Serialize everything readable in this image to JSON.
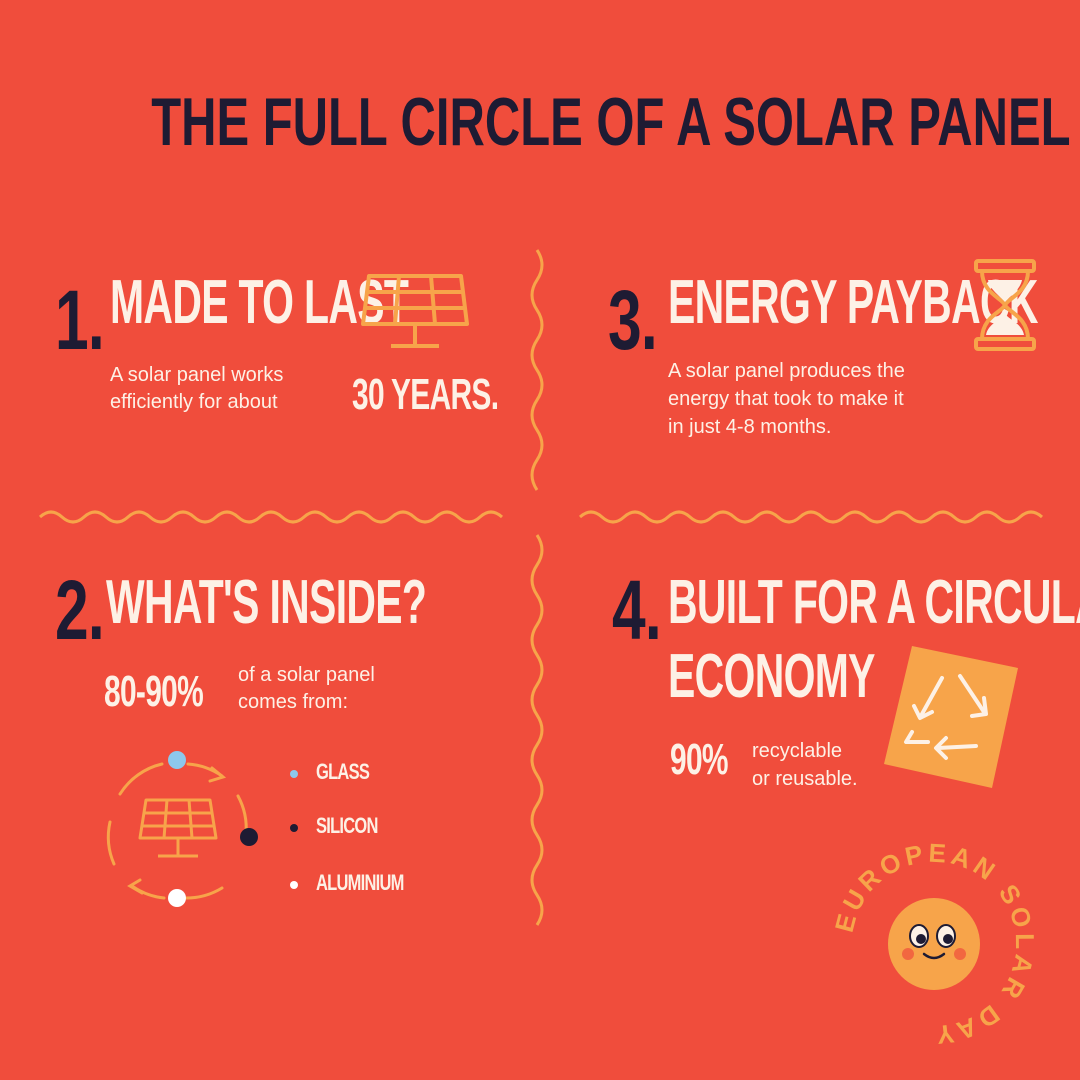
{
  "title": "THE FULL CIRCLE OF A SOLAR PANEL",
  "sections": [
    {
      "number": "1.",
      "heading": "MADE TO LAST",
      "text_line1": "A solar panel works",
      "text_line2": "efficiently for about",
      "stat": "30 YEARS.",
      "icon": "solar-panel-icon"
    },
    {
      "number": "2.",
      "heading": "WHAT'S INSIDE?",
      "stat": "80-90%",
      "text_line1": "of a solar panel",
      "text_line2": "comes from:",
      "icon": "recycle-cycle-icon",
      "materials": [
        {
          "label": "GLASS",
          "color": "#8DC8EC"
        },
        {
          "label": "SILICON",
          "color": "#1E1B33"
        },
        {
          "label": "ALUMINIUM",
          "color": "#FFFFFF"
        }
      ]
    },
    {
      "number": "3.",
      "heading": "ENERGY PAYBACK",
      "text_line1": "A solar panel produces the",
      "text_line2": "energy that took to make it",
      "text_line3": "in just 4-8 months.",
      "icon": "hourglass-icon"
    },
    {
      "number": "4.",
      "heading_line1": "BUILT FOR A CIRCULAR",
      "heading_line2": "ECONOMY",
      "stat": "90%",
      "text_line1": "recyclable",
      "text_line2": "or reusable.",
      "icon": "recycle-icon"
    }
  ],
  "logo": {
    "text": "EUROPEAN SOLAR DAY",
    "icon": "smiling-sun-icon"
  },
  "colors": {
    "background": "#F04D3C",
    "dark": "#1E1B33",
    "cream": "#FDF1E6",
    "accent": "#F7A44A"
  }
}
